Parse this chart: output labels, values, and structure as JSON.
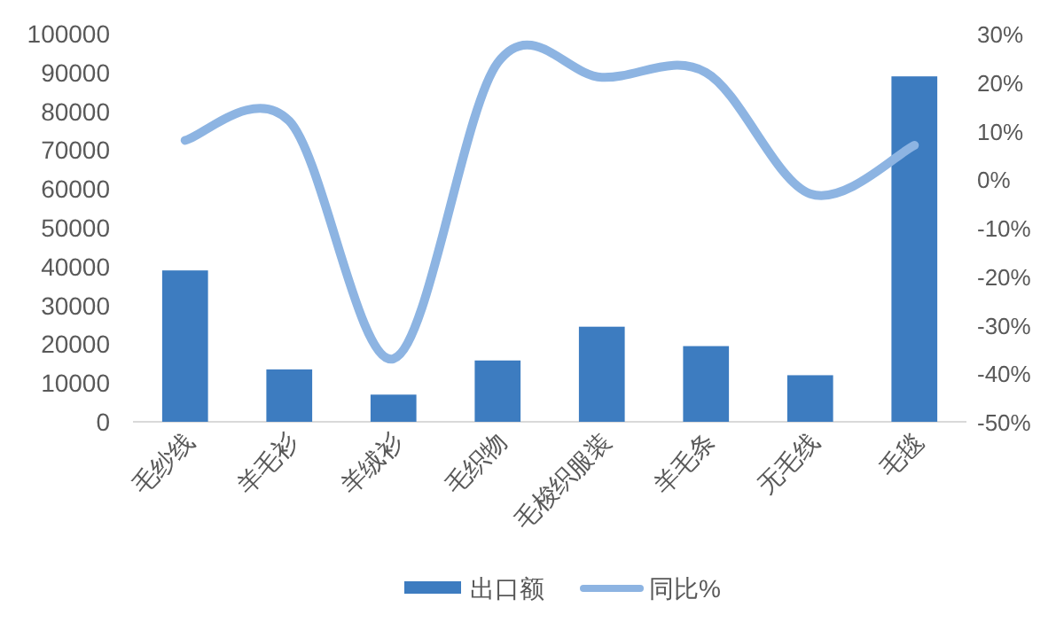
{
  "chart_data": {
    "type": "bar",
    "categories": [
      "毛纱线",
      "羊毛衫",
      "羊绒衫",
      "毛织物",
      "毛梭织服装",
      "羊毛条",
      "无毛线",
      "毛毯"
    ],
    "series": [
      {
        "name": "出口额",
        "color": "#3d7cc0",
        "values": [
          39000,
          13500,
          7000,
          15800,
          24500,
          19500,
          12000,
          89000
        ]
      },
      {
        "name": "同比%",
        "type": "line",
        "axis": "y2",
        "color": "#8db4e2",
        "values": [
          8,
          12,
          -37,
          24,
          21,
          22,
          -3,
          7
        ]
      }
    ],
    "ylim": [
      0,
      100000
    ],
    "yticks": [
      0,
      10000,
      20000,
      30000,
      40000,
      50000,
      60000,
      70000,
      80000,
      90000,
      100000
    ],
    "y2lim": [
      -50,
      30
    ],
    "y2ticks": [
      {
        "value": -50,
        "label": "-50%"
      },
      {
        "value": -40,
        "label": "-40%"
      },
      {
        "value": -30,
        "label": "-30%"
      },
      {
        "value": -20,
        "label": "-20%"
      },
      {
        "value": -10,
        "label": "-10%"
      },
      {
        "value": 0,
        "label": "0%"
      },
      {
        "value": 10,
        "label": "10%"
      },
      {
        "value": 20,
        "label": "20%"
      },
      {
        "value": 30,
        "label": "30%"
      }
    ],
    "legend": "bottom",
    "grid": false
  }
}
